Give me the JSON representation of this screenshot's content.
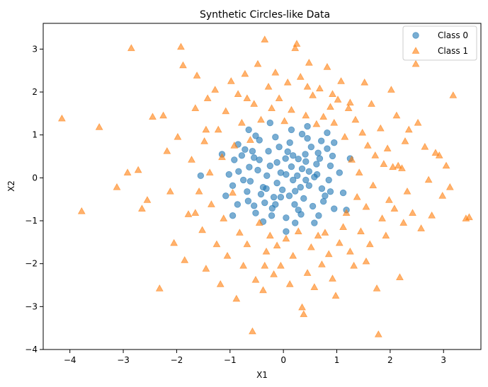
{
  "chart_data": {
    "type": "scatter",
    "title": "Synthetic Circles-like Data",
    "xlabel": "X1",
    "ylabel": "X2",
    "xlim": [
      -4.5,
      3.7
    ],
    "ylim": [
      -4.0,
      3.6
    ],
    "xticks": [
      -4,
      -3,
      -2,
      -1,
      0,
      1,
      2,
      3
    ],
    "yticks": [
      -4,
      -3,
      -2,
      -1,
      0,
      1,
      2,
      3
    ],
    "grid": false,
    "legend_position": "top-right",
    "series": [
      {
        "name": "Class 0",
        "marker": "circle",
        "color": "#1f77b4",
        "alpha": 0.6,
        "points": [
          [
            -0.05,
            0.12
          ],
          [
            0.22,
            -0.31
          ],
          [
            0.41,
            0.55
          ],
          [
            -0.38,
            -0.22
          ],
          [
            0.63,
            0.08
          ],
          [
            -0.55,
            0.47
          ],
          [
            0.12,
            0.82
          ],
          [
            -0.21,
            -0.71
          ],
          [
            0.78,
            -0.42
          ],
          [
            -0.84,
            0.15
          ],
          [
            0.35,
            0.21
          ],
          [
            -0.12,
            0.36
          ],
          [
            0.55,
            -0.66
          ],
          [
            -0.66,
            -0.54
          ],
          [
            0.18,
            -0.05
          ],
          [
            0.92,
            0.51
          ],
          [
            -0.45,
            0.88
          ],
          [
            0.05,
            -0.93
          ],
          [
            -0.95,
            -0.18
          ],
          [
            0.71,
            0.86
          ],
          [
            0.28,
            0.44
          ],
          [
            -0.31,
            0.05
          ],
          [
            0.48,
            -0.18
          ],
          [
            -0.72,
            0.66
          ],
          [
            0.08,
            0.61
          ],
          [
            -0.18,
            -0.45
          ],
          [
            0.85,
            -0.05
          ],
          [
            -0.52,
            -0.82
          ],
          [
            0.62,
            0.32
          ],
          [
            -0.02,
            -0.28
          ],
          [
            0.33,
            -0.85
          ],
          [
            -0.86,
            -0.62
          ],
          [
            0.95,
            -0.72
          ],
          [
            -0.64,
            0.25
          ],
          [
            0.15,
            0.26
          ],
          [
            0.52,
            0.72
          ],
          [
            -0.28,
            0.62
          ],
          [
            0.72,
            -0.25
          ],
          [
            -0.42,
            -0.38
          ],
          [
            0.04,
            0.45
          ],
          [
            0.38,
            -0.48
          ],
          [
            -0.75,
            -0.05
          ],
          [
            0.58,
            0.02
          ],
          [
            -0.15,
            0.95
          ],
          [
            0.88,
            0.28
          ],
          [
            -0.58,
            0.62
          ],
          [
            0.21,
            -0.62
          ],
          [
            -0.35,
            -0.58
          ],
          [
            0.45,
            0.92
          ],
          [
            -0.92,
            0.42
          ],
          [
            0.66,
            -0.88
          ],
          [
            -0.08,
            0.72
          ],
          [
            0.26,
            0.05
          ],
          [
            -0.48,
            0.18
          ],
          [
            0.82,
            0.68
          ],
          [
            -0.22,
            -0.88
          ],
          [
            0.11,
            -0.42
          ],
          [
            -0.68,
            -0.32
          ],
          [
            0.42,
            0.38
          ],
          [
            -0.12,
            -0.12
          ],
          [
            1.05,
            0.12
          ],
          [
            -1.02,
            0.08
          ],
          [
            0.35,
            1.02
          ],
          [
            0.22,
            -1.05
          ],
          [
            -0.85,
            0.78
          ],
          [
            0.75,
            -0.55
          ],
          [
            -0.38,
            -1.02
          ],
          [
            0.95,
            0.82
          ],
          [
            -0.52,
            0.98
          ],
          [
            0.58,
            -1.05
          ],
          [
            1.12,
            -0.35
          ],
          [
            -1.08,
            -0.42
          ],
          [
            0.15,
            1.12
          ],
          [
            0.65,
            0.58
          ],
          [
            -0.25,
            0.28
          ],
          [
            0.32,
            -0.22
          ],
          [
            -0.62,
            -0.08
          ],
          [
            0.48,
            0.15
          ],
          [
            -0.15,
            -0.62
          ],
          [
            0.05,
            0.08
          ],
          [
            0.88,
            -0.32
          ],
          [
            -0.78,
            0.52
          ],
          [
            0.28,
            -0.75
          ],
          [
            -0.45,
            0.42
          ],
          [
            0.68,
            0.45
          ],
          [
            -0.32,
            -0.25
          ],
          [
            0.18,
            0.52
          ],
          [
            -0.55,
            -0.65
          ],
          [
            0.42,
            -0.05
          ],
          [
            -0.05,
            -0.45
          ],
          [
            -1.55,
            0.05
          ],
          [
            1.25,
            0.45
          ],
          [
            -1.15,
            0.55
          ],
          [
            0.45,
            1.2
          ],
          [
            -0.65,
            1.12
          ],
          [
            0.82,
            1.05
          ],
          [
            1.18,
            -0.75
          ],
          [
            -0.95,
            -0.88
          ],
          [
            -0.25,
            1.28
          ],
          [
            0.05,
            -1.25
          ]
        ]
      },
      {
        "name": "Class 1",
        "marker": "triangle",
        "color": "#ff7f0e",
        "alpha": 0.6,
        "points": [
          [
            -4.15,
            1.38
          ],
          [
            -3.78,
            -0.78
          ],
          [
            -3.45,
            1.18
          ],
          [
            -2.85,
            3.02
          ],
          [
            -3.12,
            -0.22
          ],
          [
            -2.92,
            0.12
          ],
          [
            -2.65,
            -0.72
          ],
          [
            -2.55,
            -0.52
          ],
          [
            -2.72,
            0.18
          ],
          [
            -2.45,
            1.42
          ],
          [
            -2.32,
            -2.58
          ],
          [
            -2.25,
            1.45
          ],
          [
            -2.18,
            0.62
          ],
          [
            -2.12,
            -0.32
          ],
          [
            -2.05,
            -1.52
          ],
          [
            -1.98,
            0.95
          ],
          [
            -1.92,
            3.05
          ],
          [
            -1.88,
            2.62
          ],
          [
            -1.85,
            -1.92
          ],
          [
            -1.78,
            -0.85
          ],
          [
            -1.72,
            0.42
          ],
          [
            -1.65,
            1.62
          ],
          [
            -1.62,
            2.38
          ],
          [
            -1.58,
            -0.32
          ],
          [
            -1.52,
            -1.22
          ],
          [
            -1.48,
            0.85
          ],
          [
            -1.45,
            -2.12
          ],
          [
            -1.42,
            1.85
          ],
          [
            -1.38,
            0.12
          ],
          [
            -1.35,
            -0.62
          ],
          [
            -1.28,
            2.05
          ],
          [
            -1.25,
            -1.55
          ],
          [
            -1.22,
            1.12
          ],
          [
            -1.18,
            -2.48
          ],
          [
            -1.15,
            0.48
          ],
          [
            -1.12,
            -0.95
          ],
          [
            -1.08,
            1.55
          ],
          [
            -1.05,
            -1.82
          ],
          [
            -0.98,
            2.25
          ],
          [
            -0.95,
            -0.35
          ],
          [
            -0.92,
            0.75
          ],
          [
            -0.88,
            -2.82
          ],
          [
            -0.85,
            1.95
          ],
          [
            -0.82,
            -1.28
          ],
          [
            -0.78,
            1.28
          ],
          [
            -0.75,
            -2.05
          ],
          [
            -0.72,
            2.42
          ],
          [
            -0.68,
            -1.55
          ],
          [
            -0.62,
            0.88
          ],
          [
            -0.58,
            -3.58
          ],
          [
            -0.55,
            1.72
          ],
          [
            -0.52,
            -2.38
          ],
          [
            -0.48,
            2.65
          ],
          [
            -0.45,
            -1.05
          ],
          [
            -0.42,
            1.35
          ],
          [
            -0.38,
            -2.62
          ],
          [
            -0.35,
            3.22
          ],
          [
            -0.32,
            -1.72
          ],
          [
            -0.28,
            2.12
          ],
          [
            -0.25,
            -1.35
          ],
          [
            -0.22,
            1.62
          ],
          [
            -0.18,
            -2.25
          ],
          [
            -0.15,
            2.45
          ],
          [
            -0.12,
            -1.58
          ],
          [
            -0.08,
            1.85
          ],
          [
            -0.05,
            -2.05
          ],
          [
            0.02,
            1.32
          ],
          [
            0.05,
            -1.42
          ],
          [
            0.08,
            2.22
          ],
          [
            0.12,
            -2.48
          ],
          [
            0.15,
            1.58
          ],
          [
            0.18,
            -1.82
          ],
          [
            0.22,
            3.02
          ],
          [
            0.25,
            3.12
          ],
          [
            0.28,
            -1.25
          ],
          [
            0.32,
            2.35
          ],
          [
            0.35,
            -3.02
          ],
          [
            0.38,
            -3.18
          ],
          [
            0.42,
            1.45
          ],
          [
            0.45,
            -2.22
          ],
          [
            0.48,
            2.68
          ],
          [
            0.52,
            -1.62
          ],
          [
            0.55,
            1.92
          ],
          [
            0.58,
            -2.55
          ],
          [
            0.62,
            1.25
          ],
          [
            0.65,
            -1.35
          ],
          [
            0.68,
            2.08
          ],
          [
            0.72,
            -2.02
          ],
          [
            0.75,
            1.42
          ],
          [
            0.78,
            -1.28
          ],
          [
            0.82,
            2.58
          ],
          [
            0.85,
            -1.78
          ],
          [
            0.88,
            1.65
          ],
          [
            0.92,
            -2.35
          ],
          [
            0.95,
            1.28
          ],
          [
            0.98,
            -2.75
          ],
          [
            1.02,
            1.82
          ],
          [
            1.05,
            -1.52
          ],
          [
            1.08,
            2.25
          ],
          [
            1.12,
            -1.15
          ],
          [
            1.15,
            0.95
          ],
          [
            1.18,
            -0.82
          ],
          [
            1.22,
            1.62
          ],
          [
            1.25,
            -1.72
          ],
          [
            1.28,
            0.42
          ],
          [
            1.32,
            -2.05
          ],
          [
            1.35,
            1.35
          ],
          [
            1.38,
            -0.45
          ],
          [
            1.42,
            0.12
          ],
          [
            1.45,
            -1.25
          ],
          [
            1.48,
            1.05
          ],
          [
            1.52,
            2.22
          ],
          [
            1.55,
            -0.68
          ],
          [
            1.58,
            0.75
          ],
          [
            1.62,
            -1.55
          ],
          [
            1.65,
            1.72
          ],
          [
            1.68,
            -0.18
          ],
          [
            1.72,
            0.52
          ],
          [
            1.75,
            -2.58
          ],
          [
            1.78,
            -3.65
          ],
          [
            1.82,
            1.15
          ],
          [
            1.85,
            -0.95
          ],
          [
            1.88,
            0.32
          ],
          [
            1.92,
            -1.35
          ],
          [
            1.95,
            0.68
          ],
          [
            1.98,
            -0.52
          ],
          [
            2.02,
            2.05
          ],
          [
            2.05,
            0.25
          ],
          [
            2.08,
            -0.72
          ],
          [
            2.12,
            1.45
          ],
          [
            2.15,
            0.28
          ],
          [
            2.18,
            -2.32
          ],
          [
            2.22,
            0.22
          ],
          [
            2.25,
            -1.05
          ],
          [
            2.28,
            0.85
          ],
          [
            2.32,
            -0.32
          ],
          [
            2.35,
            1.12
          ],
          [
            2.42,
            -0.82
          ],
          [
            2.48,
            2.65
          ],
          [
            2.52,
            1.28
          ],
          [
            2.58,
            -1.18
          ],
          [
            2.65,
            0.72
          ],
          [
            2.72,
            -0.05
          ],
          [
            2.78,
            -0.88
          ],
          [
            2.85,
            0.58
          ],
          [
            2.92,
            0.52
          ],
          [
            2.98,
            -0.42
          ],
          [
            3.05,
            0.28
          ],
          [
            3.12,
            -0.22
          ],
          [
            3.18,
            1.92
          ],
          [
            3.42,
            -0.95
          ],
          [
            3.48,
            -0.92
          ],
          [
            -0.68,
            1.85
          ],
          [
            0.45,
            2.12
          ],
          [
            -1.45,
            1.12
          ],
          [
            1.55,
            -1.95
          ],
          [
            -1.65,
            -0.82
          ],
          [
            0.92,
            1.95
          ],
          [
            -0.35,
            -2.05
          ],
          [
            1.25,
            1.75
          ]
        ]
      }
    ]
  }
}
